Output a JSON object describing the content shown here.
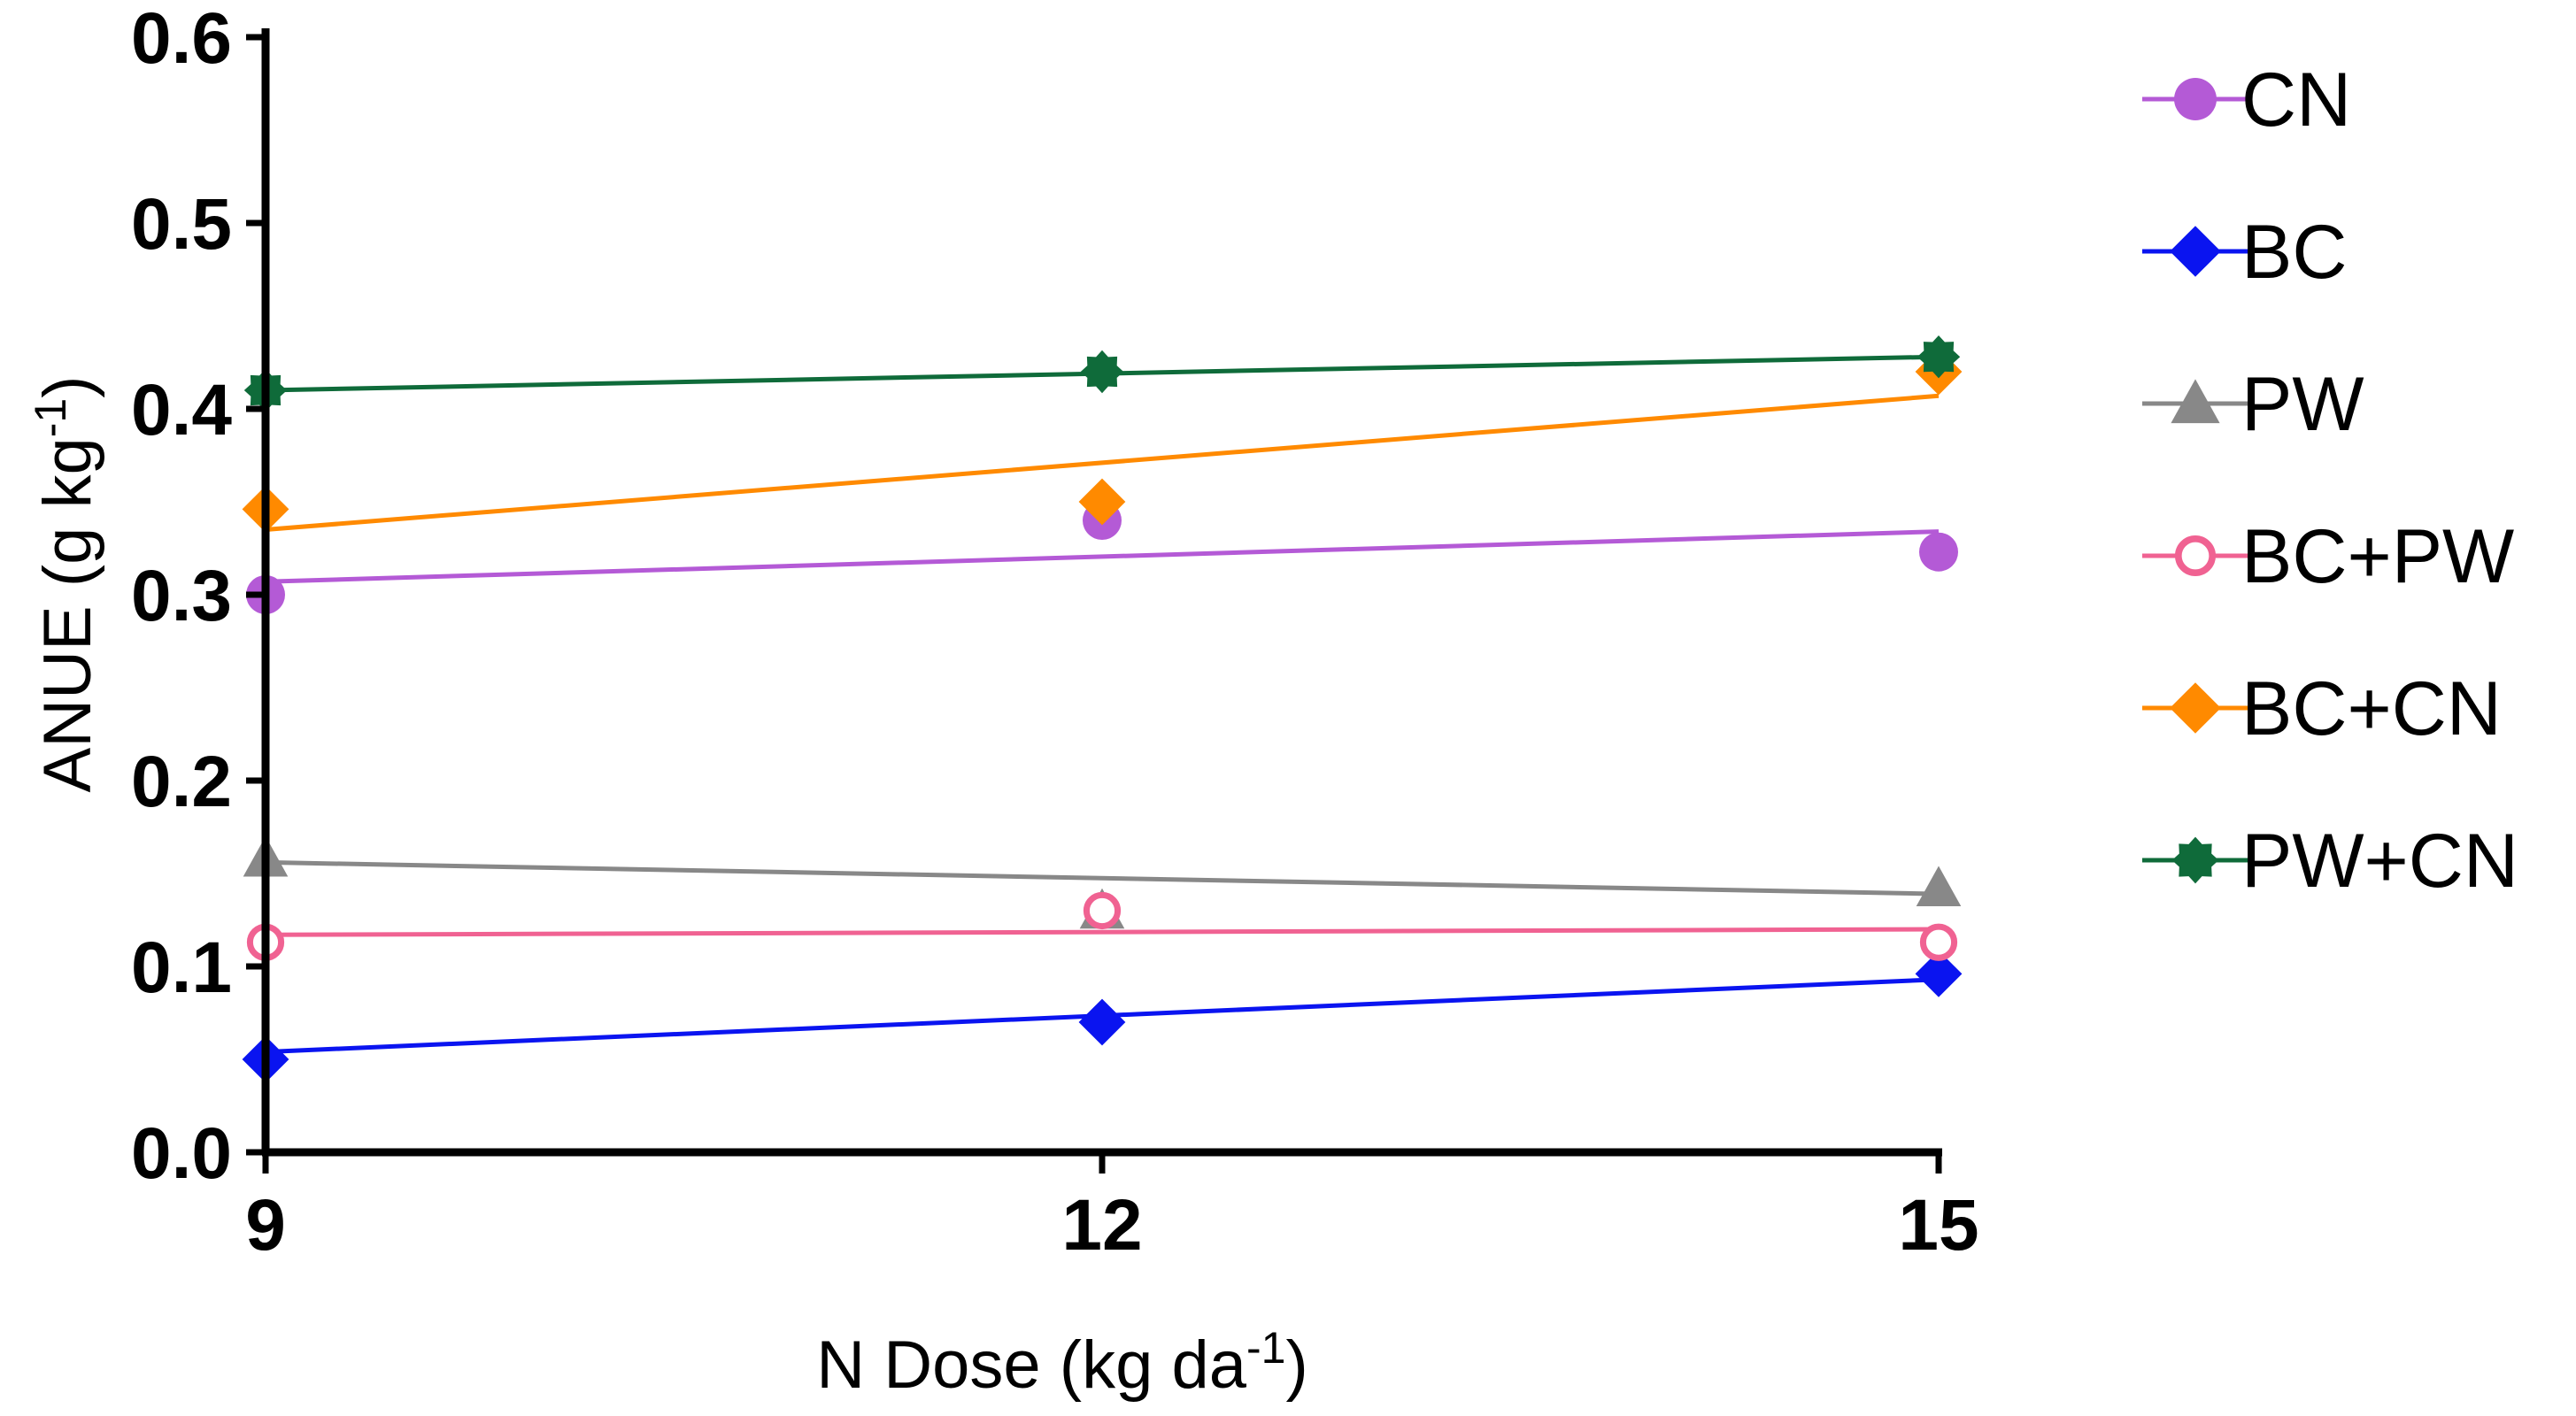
{
  "chart_data": {
    "type": "scatter",
    "xlabel": "N Dose (kg da",
    "xlabel_sup": "-1",
    "xlabel_end": ")",
    "ylabel": "ANUE (g kg",
    "ylabel_sup": "-1",
    "ylabel_end": ")",
    "xlim": [
      9,
      15
    ],
    "ylim": [
      0,
      0.6
    ],
    "x_ticks": [
      9,
      12,
      15
    ],
    "y_ticks": [
      0.0,
      0.1,
      0.2,
      0.3,
      0.4,
      0.5,
      0.6
    ],
    "y_tick_labels": [
      "0.0",
      "0.1",
      "0.2",
      "0.3",
      "0.4",
      "0.5",
      "0.6"
    ],
    "x_tick_labels": [
      "9",
      "12",
      "15"
    ],
    "grid": false,
    "legend_position": "right",
    "series": [
      {
        "name": "CN",
        "color": "#b45ad6",
        "marker": "circle-filled",
        "x": [
          9,
          12,
          15
        ],
        "y": [
          0.3,
          0.34,
          0.323
        ],
        "fit": [
          0.307,
          0.334
        ]
      },
      {
        "name": "BC",
        "color": "#0a14f0",
        "marker": "diamond-filled",
        "x": [
          9,
          12,
          15
        ],
        "y": [
          0.05,
          0.07,
          0.096
        ],
        "fit": [
          0.054,
          0.093
        ]
      },
      {
        "name": "PW",
        "color": "#888888",
        "marker": "triangle-filled",
        "x": [
          9,
          12,
          15
        ],
        "y": [
          0.158,
          0.13,
          0.142
        ],
        "fit": [
          0.156,
          0.139
        ]
      },
      {
        "name": "BC+PW",
        "color": "#f06292",
        "marker": "circle-open",
        "x": [
          9,
          12,
          15
        ],
        "y": [
          0.113,
          0.13,
          0.113
        ],
        "fit": [
          0.117,
          0.12
        ]
      },
      {
        "name": "BC+CN",
        "color": "#ff8a00",
        "marker": "diamond-filled",
        "x": [
          9,
          12,
          15
        ],
        "y": [
          0.346,
          0.35,
          0.42
        ],
        "fit": [
          0.335,
          0.407
        ]
      },
      {
        "name": "PW+CN",
        "color": "#0f6b3a",
        "marker": "star-filled",
        "x": [
          9,
          12,
          15
        ],
        "y": [
          0.41,
          0.42,
          0.428
        ],
        "fit": [
          0.41,
          0.428
        ]
      }
    ]
  }
}
